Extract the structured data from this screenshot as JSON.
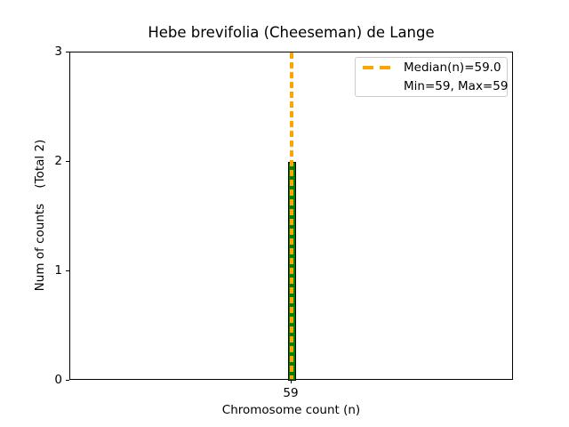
{
  "figure": {
    "background": "#ffffff"
  },
  "chart_data": {
    "type": "bar",
    "title": "Hebe brevifolia (Cheeseman) de Lange",
    "xlabel": "Chromosome count (n)",
    "ylabel": "Num of counts    (Total 2)",
    "categories": [
      59
    ],
    "values": [
      2
    ],
    "total_counts": 2,
    "ylim": [
      0,
      3
    ],
    "yticks": [
      0,
      1,
      2,
      3
    ],
    "xtick_labels": [
      "59"
    ],
    "grid": false,
    "bar_fill_color": "#008000",
    "bar_edge_color": "#000000",
    "median_line": {
      "value": 59.0,
      "color": "#FFA500",
      "style": "dashed",
      "orientation": "vertical"
    },
    "legend": {
      "position": "upper-right",
      "entries": [
        {
          "swatch": "orange-dashed-line",
          "label": "Median(n)=59.0"
        },
        {
          "swatch": "none",
          "label": "Min=59, Max=59"
        }
      ]
    },
    "stats": {
      "median": 59.0,
      "min": 59,
      "max": 59
    }
  }
}
